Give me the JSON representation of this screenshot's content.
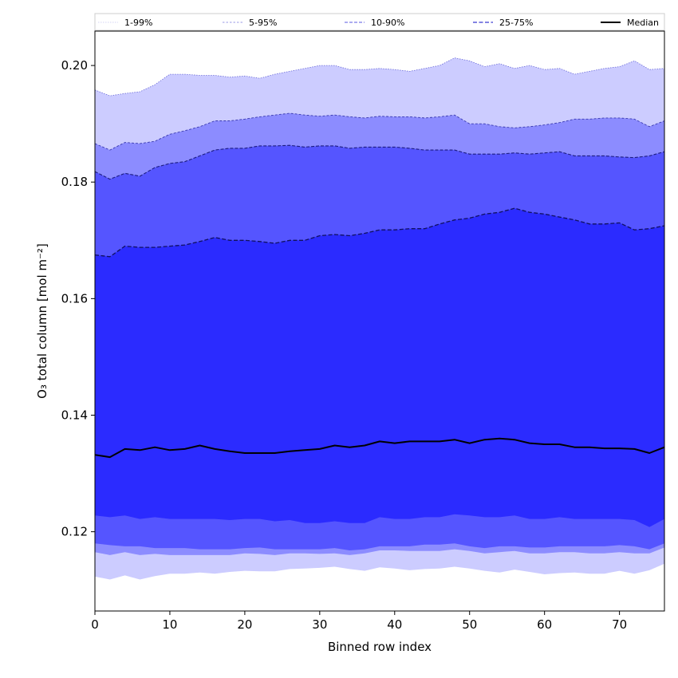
{
  "chart_data": {
    "type": "area",
    "title": "",
    "xlabel": "Binned row index",
    "ylabel": "O₃ total column [mol m⁻²]",
    "xlim": [
      0,
      76
    ],
    "ylim": [
      0.1064,
      0.2059
    ],
    "xticks": [
      0,
      10,
      20,
      30,
      40,
      50,
      60,
      70
    ],
    "xtick_labels": [
      "0",
      "10",
      "20",
      "30",
      "40",
      "50",
      "60",
      "70"
    ],
    "yticks": [
      0.12,
      0.14,
      0.16,
      0.18,
      0.2
    ],
    "ytick_labels": [
      "0.12",
      "0.14",
      "0.16",
      "0.18",
      "0.20"
    ],
    "grid": false,
    "legend_placement": "top (above plot, single row)",
    "legend": [
      {
        "label": "1-99%",
        "style": "dotted",
        "color": "#c8c8f0"
      },
      {
        "label": "5-95%",
        "style": "dashed",
        "color": "#9a9ae6"
      },
      {
        "label": "10-90%",
        "style": "dashed",
        "color": "#7a7ae8"
      },
      {
        "label": "25-75%",
        "style": "dashed",
        "color": "#5a5ad8"
      },
      {
        "label": "Median",
        "style": "solid",
        "color": "#000000"
      }
    ],
    "x": [
      0,
      2,
      4,
      6,
      8,
      10,
      12,
      14,
      16,
      18,
      20,
      22,
      24,
      26,
      28,
      30,
      32,
      34,
      36,
      38,
      40,
      42,
      44,
      46,
      48,
      50,
      52,
      54,
      56,
      58,
      60,
      62,
      64,
      66,
      68,
      70,
      72,
      74,
      76
    ],
    "series": [
      {
        "name": "1-99%",
        "fill": "#ccccff",
        "edge": "#6a6ad8",
        "lower": [
          0.1123,
          0.1118,
          0.1125,
          0.1118,
          0.1124,
          0.1128,
          0.1128,
          0.113,
          0.1128,
          0.1131,
          0.1133,
          0.1132,
          0.1132,
          0.1136,
          0.1137,
          0.1138,
          0.114,
          0.1136,
          0.1133,
          0.1139,
          0.1137,
          0.1134,
          0.1136,
          0.1137,
          0.114,
          0.1137,
          0.1133,
          0.113,
          0.1135,
          0.1131,
          0.1127,
          0.1129,
          0.113,
          0.1128,
          0.1128,
          0.1133,
          0.1128,
          0.1134,
          0.1145
        ],
        "upper": [
          0.1958,
          0.1948,
          0.1952,
          0.1955,
          0.1967,
          0.1985,
          0.1985,
          0.1983,
          0.1983,
          0.198,
          0.1982,
          0.1978,
          0.1985,
          0.199,
          0.1995,
          0.2,
          0.2,
          0.1993,
          0.1993,
          0.1995,
          0.1993,
          0.199,
          0.1995,
          0.2,
          0.2013,
          0.2008,
          0.1998,
          0.2003,
          0.1995,
          0.2,
          0.1993,
          0.1995,
          0.1985,
          0.199,
          0.1995,
          0.1998,
          0.2008,
          0.1993,
          0.1995
        ]
      },
      {
        "name": "5-95%",
        "fill": "#8c8cff",
        "edge": "#3a3ab0",
        "lower": [
          0.1165,
          0.116,
          0.1165,
          0.116,
          0.1162,
          0.116,
          0.116,
          0.116,
          0.116,
          0.116,
          0.1163,
          0.1162,
          0.116,
          0.1163,
          0.1163,
          0.1162,
          0.1163,
          0.116,
          0.1163,
          0.1168,
          0.1168,
          0.1167,
          0.1167,
          0.1167,
          0.117,
          0.1167,
          0.1163,
          0.1165,
          0.1167,
          0.1163,
          0.1163,
          0.1165,
          0.1165,
          0.1163,
          0.1163,
          0.1165,
          0.1163,
          0.1163,
          0.1173
        ],
        "upper": [
          0.1866,
          0.1855,
          0.1868,
          0.1866,
          0.187,
          0.1882,
          0.1888,
          0.1895,
          0.1905,
          0.1905,
          0.1908,
          0.1912,
          0.1915,
          0.1918,
          0.1915,
          0.1913,
          0.1915,
          0.1912,
          0.191,
          0.1913,
          0.1912,
          0.1912,
          0.191,
          0.1912,
          0.1915,
          0.19,
          0.19,
          0.1895,
          0.1893,
          0.1895,
          0.1898,
          0.1902,
          0.1908,
          0.1908,
          0.191,
          0.191,
          0.1908,
          0.1895,
          0.1905
        ]
      },
      {
        "name": "10-90%",
        "fill": "#5555ff",
        "edge": "#1c1c80",
        "lower": [
          0.118,
          0.1177,
          0.1175,
          0.1175,
          0.1172,
          0.1172,
          0.1172,
          0.117,
          0.117,
          0.117,
          0.1172,
          0.1173,
          0.117,
          0.117,
          0.117,
          0.117,
          0.1172,
          0.1168,
          0.117,
          0.1175,
          0.1175,
          0.1175,
          0.1178,
          0.1178,
          0.118,
          0.1175,
          0.1172,
          0.1175,
          0.1175,
          0.1173,
          0.1173,
          0.1175,
          0.1175,
          0.1175,
          0.1175,
          0.1177,
          0.1175,
          0.117,
          0.118
        ],
        "upper": [
          0.1818,
          0.1805,
          0.1815,
          0.181,
          0.1825,
          0.1832,
          0.1835,
          0.1845,
          0.1855,
          0.1858,
          0.1858,
          0.1862,
          0.1862,
          0.1863,
          0.186,
          0.1862,
          0.1862,
          0.1858,
          0.186,
          0.186,
          0.186,
          0.1858,
          0.1855,
          0.1855,
          0.1855,
          0.1848,
          0.1848,
          0.1848,
          0.185,
          0.1848,
          0.185,
          0.1852,
          0.1845,
          0.1845,
          0.1845,
          0.1843,
          0.1842,
          0.1845,
          0.1852
        ]
      },
      {
        "name": "25-75%",
        "fill": "#2b2bff",
        "edge": "#101060",
        "lower": [
          0.1228,
          0.1225,
          0.1228,
          0.1222,
          0.1225,
          0.1222,
          0.1222,
          0.1222,
          0.1222,
          0.122,
          0.1222,
          0.1222,
          0.1218,
          0.122,
          0.1215,
          0.1215,
          0.1218,
          0.1215,
          0.1215,
          0.1225,
          0.1222,
          0.1222,
          0.1225,
          0.1225,
          0.123,
          0.1228,
          0.1225,
          0.1225,
          0.1228,
          0.1222,
          0.1222,
          0.1225,
          0.1222,
          0.1222,
          0.1222,
          0.1222,
          0.122,
          0.1208,
          0.1222
        ],
        "upper": [
          0.1675,
          0.1672,
          0.169,
          0.1688,
          0.1688,
          0.169,
          0.1692,
          0.1698,
          0.1705,
          0.17,
          0.17,
          0.1698,
          0.1695,
          0.17,
          0.17,
          0.1708,
          0.171,
          0.1708,
          0.1712,
          0.1718,
          0.1718,
          0.172,
          0.172,
          0.1728,
          0.1735,
          0.1738,
          0.1745,
          0.1748,
          0.1755,
          0.1748,
          0.1745,
          0.174,
          0.1735,
          0.1728,
          0.1728,
          0.173,
          0.1718,
          0.172,
          0.1725
        ]
      },
      {
        "name": "Median",
        "color": "#000000",
        "values": [
          0.1332,
          0.1328,
          0.1342,
          0.134,
          0.1345,
          0.134,
          0.1342,
          0.1348,
          0.1342,
          0.1338,
          0.1335,
          0.1335,
          0.1335,
          0.1338,
          0.134,
          0.1342,
          0.1348,
          0.1345,
          0.1348,
          0.1355,
          0.1352,
          0.1355,
          0.1355,
          0.1355,
          0.1358,
          0.1352,
          0.1358,
          0.136,
          0.1358,
          0.1352,
          0.135,
          0.135,
          0.1345,
          0.1345,
          0.1343,
          0.1343,
          0.1342,
          0.1335,
          0.1345
        ]
      }
    ]
  }
}
